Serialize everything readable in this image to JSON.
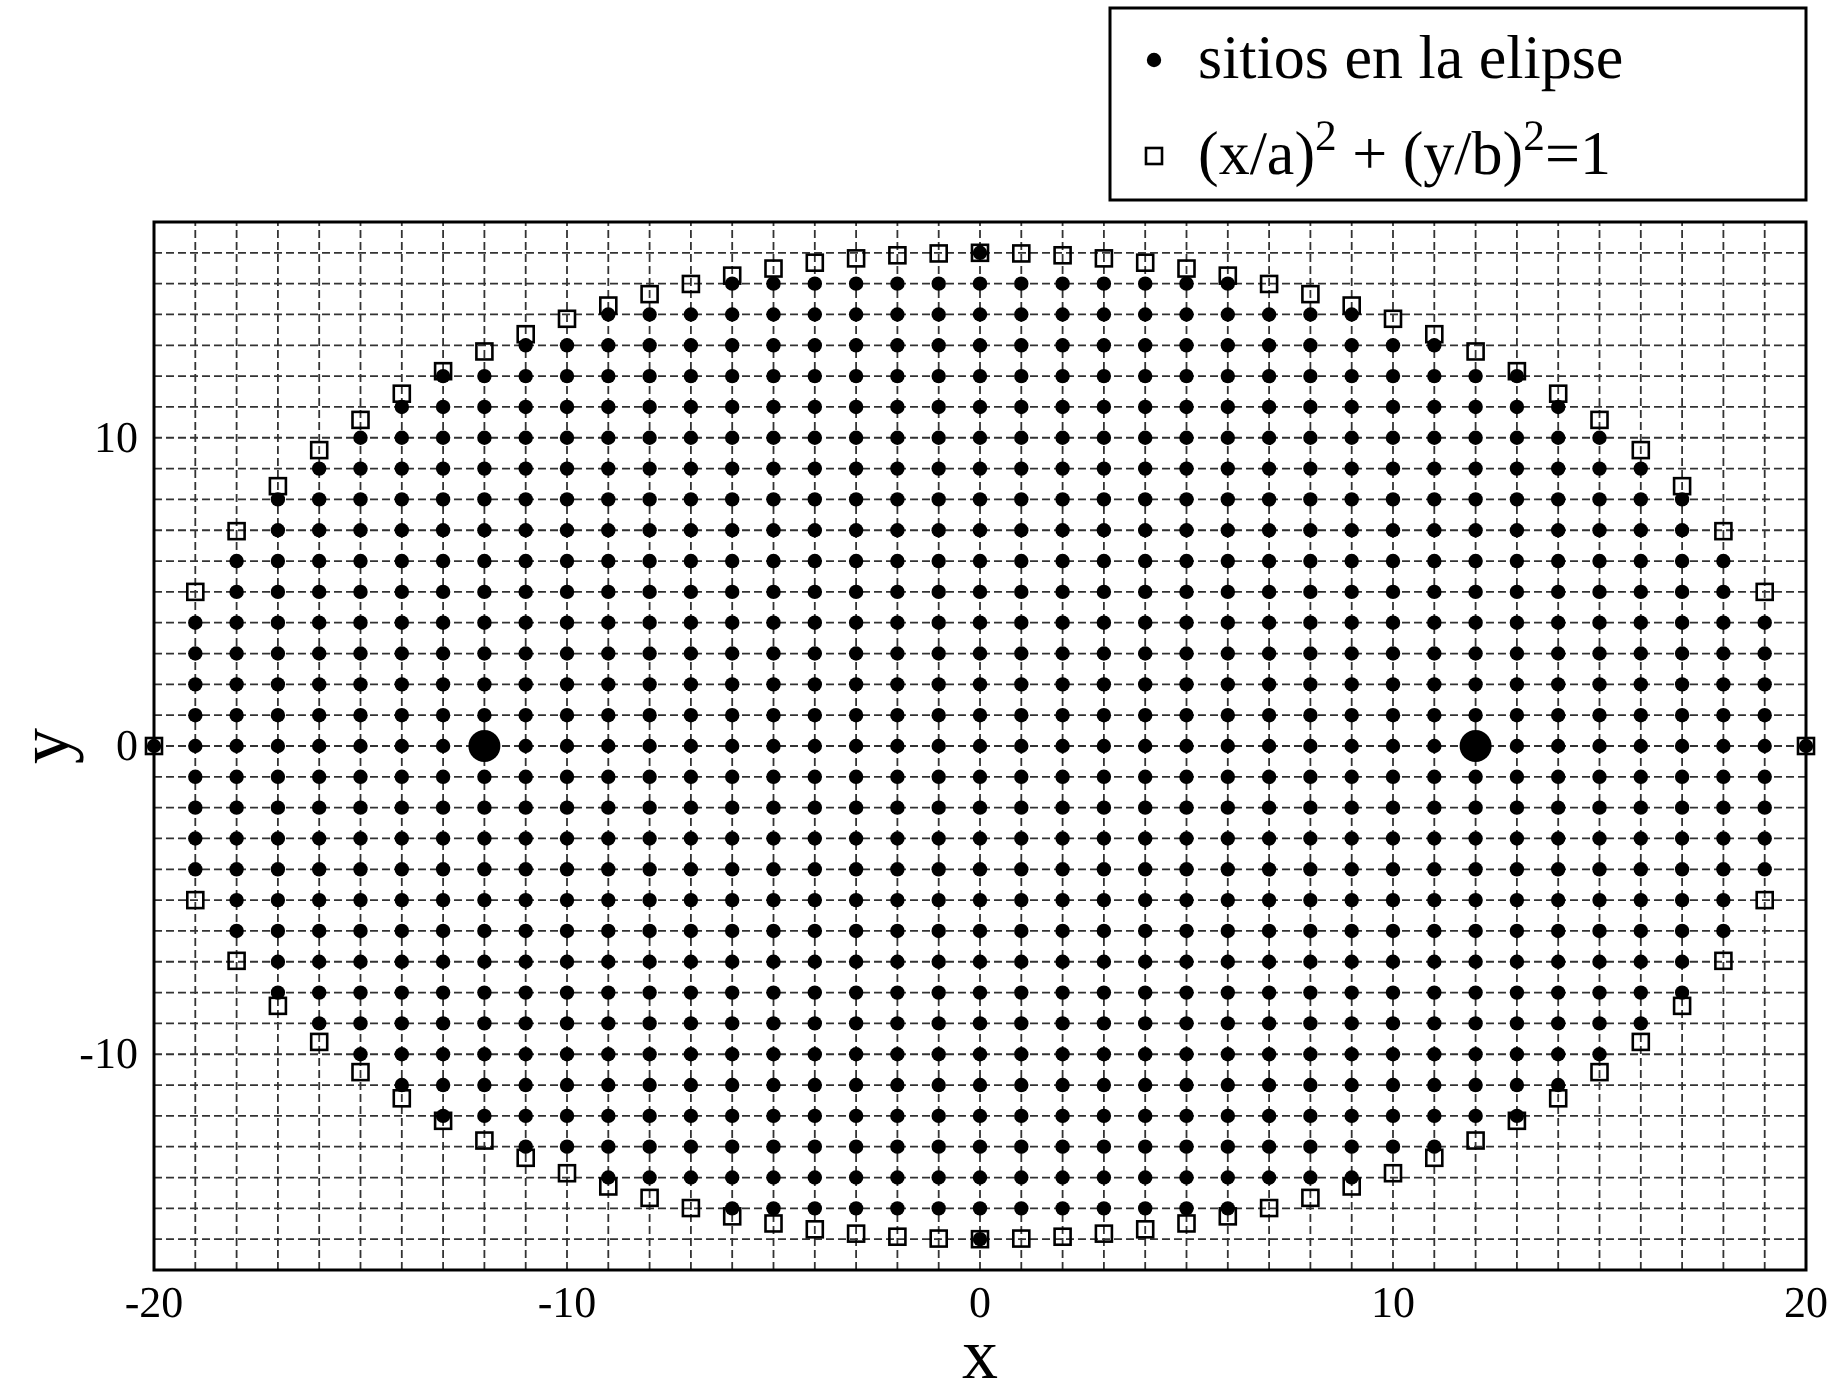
{
  "chart_data": {
    "type": "scatter",
    "xlabel": "x",
    "ylabel": "y",
    "xlim": [
      -20,
      20
    ],
    "ylim": [
      -17,
      17
    ],
    "xticks": [
      -20,
      {
        "value": -19,
        "label": null
      },
      {
        "value": -18,
        "label": null
      },
      {
        "value": -17,
        "label": null
      },
      {
        "value": -16,
        "label": null
      },
      {
        "value": -15,
        "label": null
      },
      {
        "value": -14,
        "label": null
      },
      {
        "value": -13,
        "label": null
      },
      {
        "value": -12,
        "label": null
      },
      {
        "value": -11,
        "label": null
      },
      -10,
      {
        "value": -9,
        "label": null
      },
      {
        "value": -8,
        "label": null
      },
      {
        "value": -7,
        "label": null
      },
      {
        "value": -6,
        "label": null
      },
      {
        "value": -5,
        "label": null
      },
      {
        "value": -4,
        "label": null
      },
      {
        "value": -3,
        "label": null
      },
      {
        "value": -2,
        "label": null
      },
      {
        "value": -1,
        "label": null
      },
      0,
      {
        "value": 1,
        "label": null
      },
      {
        "value": 2,
        "label": null
      },
      {
        "value": 3,
        "label": null
      },
      {
        "value": 4,
        "label": null
      },
      {
        "value": 5,
        "label": null
      },
      {
        "value": 6,
        "label": null
      },
      {
        "value": 7,
        "label": null
      },
      {
        "value": 8,
        "label": null
      },
      {
        "value": 9,
        "label": null
      },
      10,
      {
        "value": 11,
        "label": null
      },
      {
        "value": 12,
        "label": null
      },
      {
        "value": 13,
        "label": null
      },
      {
        "value": 14,
        "label": null
      },
      {
        "value": 15,
        "label": null
      },
      {
        "value": 16,
        "label": null
      },
      {
        "value": 17,
        "label": null
      },
      {
        "value": 18,
        "label": null
      },
      {
        "value": 19,
        "label": null
      },
      20
    ],
    "yticks": [
      {
        "value": -16,
        "label": null
      },
      {
        "value": -15,
        "label": null
      },
      {
        "value": -14,
        "label": null
      },
      {
        "value": -13,
        "label": null
      },
      {
        "value": -12,
        "label": null
      },
      {
        "value": -11,
        "label": null
      },
      -10,
      {
        "value": -9,
        "label": null
      },
      {
        "value": -8,
        "label": null
      },
      {
        "value": -7,
        "label": null
      },
      {
        "value": -6,
        "label": null
      },
      {
        "value": -5,
        "label": null
      },
      {
        "value": -4,
        "label": null
      },
      {
        "value": -3,
        "label": null
      },
      {
        "value": -2,
        "label": null
      },
      {
        "value": -1,
        "label": null
      },
      0,
      {
        "value": 1,
        "label": null
      },
      {
        "value": 2,
        "label": null
      },
      {
        "value": 3,
        "label": null
      },
      {
        "value": 4,
        "label": null
      },
      {
        "value": 5,
        "label": null
      },
      {
        "value": 6,
        "label": null
      },
      {
        "value": 7,
        "label": null
      },
      {
        "value": 8,
        "label": null
      },
      {
        "value": 9,
        "label": null
      },
      10,
      {
        "value": 11,
        "label": null
      },
      {
        "value": 12,
        "label": null
      },
      {
        "value": 13,
        "label": null
      },
      {
        "value": 14,
        "label": null
      },
      {
        "value": 15,
        "label": null
      },
      {
        "value": 16,
        "label": null
      }
    ],
    "grid": true,
    "legend": "top right",
    "series": [
      {
        "name": "sitios en la elipse",
        "color": "#000000",
        "marker": "circle",
        "x": [
          0,
          -6,
          -5,
          -4,
          -3,
          -2,
          -1,
          0,
          1,
          2,
          3,
          4,
          5,
          6,
          -9,
          -8,
          -7,
          -6,
          -5,
          -4,
          -3,
          -2,
          -1,
          0,
          1,
          2,
          3,
          4,
          5,
          6,
          7,
          8,
          9,
          -11,
          -10,
          -9,
          -8,
          -7,
          -6,
          -5,
          -4,
          -3,
          -2,
          -1,
          0,
          1,
          2,
          3,
          4,
          5,
          6,
          7,
          8,
          9,
          10,
          11,
          -13,
          -12,
          -11,
          -10,
          -9,
          -8,
          -7,
          -6,
          -5,
          -4,
          -3,
          -2,
          -1,
          0,
          1,
          2,
          3,
          4,
          5,
          6,
          7,
          8,
          9,
          10,
          11,
          12,
          13,
          -14,
          -13,
          -12,
          -11,
          -10,
          -9,
          -8,
          -7,
          -6,
          -5,
          -4,
          -3,
          -2,
          -1,
          0,
          1,
          2,
          3,
          4,
          5,
          6,
          7,
          8,
          9,
          10,
          11,
          12,
          13,
          14,
          -15,
          -14,
          -13,
          -12,
          -11,
          -10,
          -9,
          -8,
          -7,
          -6,
          -5,
          -4,
          -3,
          -2,
          -1,
          0,
          1,
          2,
          3,
          4,
          5,
          6,
          7,
          8,
          9,
          10,
          11,
          12,
          13,
          14,
          15,
          -16,
          -15,
          -14,
          -13,
          -12,
          -11,
          -10,
          -9,
          -8,
          -7,
          -6,
          -5,
          -4,
          -3,
          -2,
          -1,
          0,
          1,
          2,
          3,
          4,
          5,
          6,
          7,
          8,
          9,
          10,
          11,
          12,
          13,
          14,
          15,
          16,
          -17,
          -16,
          -15,
          -14,
          -13,
          -12,
          -11,
          -10,
          -9,
          -8,
          -7,
          -6,
          -5,
          -4,
          -3,
          -2,
          -1,
          0,
          1,
          2,
          3,
          4,
          5,
          6,
          7,
          8,
          9,
          10,
          11,
          12,
          13,
          14,
          15,
          16,
          17,
          -17,
          -16,
          -15,
          -14,
          -13,
          -12,
          -11,
          -10,
          -9,
          -8,
          -7,
          -6,
          -5,
          -4,
          -3,
          -2,
          -1,
          0,
          1,
          2,
          3,
          4,
          5,
          6,
          7,
          8,
          9,
          10,
          11,
          12,
          13,
          14,
          15,
          16,
          17,
          -18,
          -17,
          -16,
          -15,
          -14,
          -13,
          -12,
          -11,
          -10,
          -9,
          -8,
          -7,
          -6,
          -5,
          -4,
          -3,
          -2,
          -1,
          0,
          1,
          2,
          3,
          4,
          5,
          6,
          7,
          8,
          9,
          10,
          11,
          12,
          13,
          14,
          15,
          16,
          17,
          18,
          -18,
          -17,
          -16,
          -15,
          -14,
          -13,
          -12,
          -11,
          -10,
          -9,
          -8,
          -7,
          -6,
          -5,
          -4,
          -3,
          -2,
          -1,
          0,
          1,
          2,
          3,
          4,
          5,
          6,
          7,
          8,
          9,
          10,
          11,
          12,
          13,
          14,
          15,
          16,
          17,
          18,
          -19,
          -18,
          -17,
          -16,
          -15,
          -14,
          -13,
          -12,
          -11,
          -10,
          -9,
          -8,
          -7,
          -6,
          -5,
          -4,
          -3,
          -2,
          -1,
          0,
          1,
          2,
          3,
          4,
          5,
          6,
          7,
          8,
          9,
          10,
          11,
          12,
          13,
          14,
          15,
          16,
          17,
          18,
          19,
          -19,
          -18,
          -17,
          -16,
          -15,
          -14,
          -13,
          -12,
          -11,
          -10,
          -9,
          -8,
          -7,
          -6,
          -5,
          -4,
          -3,
          -2,
          -1,
          0,
          1,
          2,
          3,
          4,
          5,
          6,
          7,
          8,
          9,
          10,
          11,
          12,
          13,
          14,
          15,
          16,
          17,
          18,
          19,
          -19,
          -18,
          -17,
          -16,
          -15,
          -14,
          -13,
          -12,
          -11,
          -10,
          -9,
          -8,
          -7,
          -6,
          -5,
          -4,
          -3,
          -2,
          -1,
          0,
          1,
          2,
          3,
          4,
          5,
          6,
          7,
          8,
          9,
          10,
          11,
          12,
          13,
          14,
          15,
          16,
          17,
          18,
          19,
          -19,
          -18,
          -17,
          -16,
          -15,
          -14,
          -13,
          -12,
          -11,
          -10,
          -9,
          -8,
          -7,
          -6,
          -5,
          -4,
          -3,
          -2,
          -1,
          0,
          1,
          2,
          3,
          4,
          5,
          6,
          7,
          8,
          9,
          10,
          11,
          12,
          13,
          14,
          15,
          16,
          17,
          18,
          19,
          -20,
          -19,
          -18,
          -17,
          -16,
          -15,
          -14,
          -13,
          -11,
          -10,
          -9,
          -8,
          -7,
          -6,
          -5,
          -4,
          -3,
          -2,
          -1,
          0,
          1,
          2,
          3,
          4,
          5,
          6,
          7,
          8,
          9,
          10,
          11,
          13,
          14,
          15,
          16,
          17,
          18,
          19,
          20,
          -19,
          -18,
          -17,
          -16,
          -15,
          -14,
          -13,
          -12,
          -11,
          -10,
          -9,
          -8,
          -7,
          -6,
          -5,
          -4,
          -3,
          -2,
          -1,
          0,
          1,
          2,
          3,
          4,
          5,
          6,
          7,
          8,
          9,
          10,
          11,
          12,
          13,
          14,
          15,
          16,
          17,
          18,
          19,
          -19,
          -18,
          -17,
          -16,
          -15,
          -14,
          -13,
          -12,
          -11,
          -10,
          -9,
          -8,
          -7,
          -6,
          -5,
          -4,
          -3,
          -2,
          -1,
          0,
          1,
          2,
          3,
          4,
          5,
          6,
          7,
          8,
          9,
          10,
          11,
          12,
          13,
          14,
          15,
          16,
          17,
          18,
          19,
          -19,
          -18,
          -17,
          -16,
          -15,
          -14,
          -13,
          -12,
          -11,
          -10,
          -9,
          -8,
          -7,
          -6,
          -5,
          -4,
          -3,
          -2,
          -1,
          0,
          1,
          2,
          3,
          4,
          5,
          6,
          7,
          8,
          9,
          10,
          11,
          12,
          13,
          14,
          15,
          16,
          17,
          18,
          19,
          -19,
          -18,
          -17,
          -16,
          -15,
          -14,
          -13,
          -12,
          -11,
          -10,
          -9,
          -8,
          -7,
          -6,
          -5,
          -4,
          -3,
          -2,
          -1,
          0,
          1,
          2,
          3,
          4,
          5,
          6,
          7,
          8,
          9,
          10,
          11,
          12,
          13,
          14,
          15,
          16,
          17,
          18,
          19,
          -18,
          -17,
          -16,
          -15,
          -14,
          -13,
          -12,
          -11,
          -10,
          -9,
          -8,
          -7,
          -6,
          -5,
          -4,
          -3,
          -2,
          -1,
          0,
          1,
          2,
          3,
          4,
          5,
          6,
          7,
          8,
          9,
          10,
          11,
          12,
          13,
          14,
          15,
          16,
          17,
          18,
          -18,
          -17,
          -16,
          -15,
          -14,
          -13,
          -12,
          -11,
          -10,
          -9,
          -8,
          -7,
          -6,
          -5,
          -4,
          -3,
          -2,
          -1,
          0,
          1,
          2,
          3,
          4,
          5,
          6,
          7,
          8,
          9,
          10,
          11,
          12,
          13,
          14,
          15,
          16,
          17,
          18,
          -17,
          -16,
          -15,
          -14,
          -13,
          -12,
          -11,
          -10,
          -9,
          -8,
          -7,
          -6,
          -5,
          -4,
          -3,
          -2,
          -1,
          0,
          1,
          2,
          3,
          4,
          5,
          6,
          7,
          8,
          9,
          10,
          11,
          12,
          13,
          14,
          15,
          16,
          17,
          -17,
          -16,
          -15,
          -14,
          -13,
          -12,
          -11,
          -10,
          -9,
          -8,
          -7,
          -6,
          -5,
          -4,
          -3,
          -2,
          -1,
          0,
          1,
          2,
          3,
          4,
          5,
          6,
          7,
          8,
          9,
          10,
          11,
          12,
          13,
          14,
          15,
          16,
          17,
          -16,
          -15,
          -14,
          -13,
          -12,
          -11,
          -10,
          -9,
          -8,
          -7,
          -6,
          -5,
          -4,
          -3,
          -2,
          -1,
          0,
          1,
          2,
          3,
          4,
          5,
          6,
          7,
          8,
          9,
          10,
          11,
          12,
          13,
          14,
          15,
          16,
          -15,
          -14,
          -13,
          -12,
          -11,
          -10,
          -9,
          -8,
          -7,
          -6,
          -5,
          -4,
          -3,
          -2,
          -1,
          0,
          1,
          2,
          3,
          4,
          5,
          6,
          7,
          8,
          9,
          10,
          11,
          12,
          13,
          14,
          15,
          -14,
          -13,
          -12,
          -11,
          -10,
          -9,
          -8,
          -7,
          -6,
          -5,
          -4,
          -3,
          -2,
          -1,
          0,
          1,
          2,
          3,
          4,
          5,
          6,
          7,
          8,
          9,
          10,
          11,
          12,
          13,
          14,
          -13,
          -12,
          -11,
          -10,
          -9,
          -8,
          -7,
          -6,
          -5,
          -4,
          -3,
          -2,
          -1,
          0,
          1,
          2,
          3,
          4,
          5,
          6,
          7,
          8,
          9,
          10,
          11,
          12,
          13,
          -11,
          -10,
          -9,
          -8,
          -7,
          -6,
          -5,
          -4,
          -3,
          -2,
          -1,
          0,
          1,
          2,
          3,
          4,
          5,
          6,
          7,
          8,
          9,
          10,
          11,
          -9,
          -8,
          -7,
          -6,
          -5,
          -4,
          -3,
          -2,
          -1,
          0,
          1,
          2,
          3,
          4,
          5,
          6,
          7,
          8,
          9,
          -6,
          -5,
          -4,
          -3,
          -2,
          -1,
          0,
          1,
          2,
          3,
          4,
          5,
          6,
          0
        ],
        "values": [
          16,
          15,
          15,
          15,
          15,
          15,
          15,
          15,
          15,
          15,
          15,
          15,
          15,
          15,
          14,
          14,
          14,
          14,
          14,
          14,
          14,
          14,
          14,
          14,
          14,
          14,
          14,
          14,
          14,
          14,
          14,
          14,
          14,
          13,
          13,
          13,
          13,
          13,
          13,
          13,
          13,
          13,
          13,
          13,
          13,
          13,
          13,
          13,
          13,
          13,
          13,
          13,
          13,
          13,
          13,
          13,
          12,
          12,
          12,
          12,
          12,
          12,
          12,
          12,
          12,
          12,
          12,
          12,
          12,
          12,
          12,
          12,
          12,
          12,
          12,
          12,
          12,
          12,
          12,
          12,
          12,
          12,
          12,
          11,
          11,
          11,
          11,
          11,
          11,
          11,
          11,
          11,
          11,
          11,
          11,
          11,
          11,
          11,
          11,
          11,
          11,
          11,
          11,
          11,
          11,
          11,
          11,
          11,
          11,
          11,
          11,
          11,
          10,
          10,
          10,
          10,
          10,
          10,
          10,
          10,
          10,
          10,
          10,
          10,
          10,
          10,
          10,
          10,
          10,
          10,
          10,
          10,
          10,
          10,
          10,
          10,
          10,
          10,
          10,
          10,
          10,
          10,
          10,
          9,
          9,
          9,
          9,
          9,
          9,
          9,
          9,
          9,
          9,
          9,
          9,
          9,
          9,
          9,
          9,
          9,
          9,
          9,
          9,
          9,
          9,
          9,
          9,
          9,
          9,
          9,
          9,
          9,
          9,
          9,
          9,
          9,
          8,
          8,
          8,
          8,
          8,
          8,
          8,
          8,
          8,
          8,
          8,
          8,
          8,
          8,
          8,
          8,
          8,
          8,
          8,
          8,
          8,
          8,
          8,
          8,
          8,
          8,
          8,
          8,
          8,
          8,
          8,
          8,
          8,
          8,
          8,
          7,
          7,
          7,
          7,
          7,
          7,
          7,
          7,
          7,
          7,
          7,
          7,
          7,
          7,
          7,
          7,
          7,
          7,
          7,
          7,
          7,
          7,
          7,
          7,
          7,
          7,
          7,
          7,
          7,
          7,
          7,
          7,
          7,
          7,
          7,
          6,
          6,
          6,
          6,
          6,
          6,
          6,
          6,
          6,
          6,
          6,
          6,
          6,
          6,
          6,
          6,
          6,
          6,
          6,
          6,
          6,
          6,
          6,
          6,
          6,
          6,
          6,
          6,
          6,
          6,
          6,
          6,
          6,
          6,
          6,
          6,
          6,
          5,
          5,
          5,
          5,
          5,
          5,
          5,
          5,
          5,
          5,
          5,
          5,
          5,
          5,
          5,
          5,
          5,
          5,
          5,
          5,
          5,
          5,
          5,
          5,
          5,
          5,
          5,
          5,
          5,
          5,
          5,
          5,
          5,
          5,
          5,
          5,
          5,
          4,
          4,
          4,
          4,
          4,
          4,
          4,
          4,
          4,
          4,
          4,
          4,
          4,
          4,
          4,
          4,
          4,
          4,
          4,
          4,
          4,
          4,
          4,
          4,
          4,
          4,
          4,
          4,
          4,
          4,
          4,
          4,
          4,
          4,
          4,
          4,
          4,
          4,
          4,
          3,
          3,
          3,
          3,
          3,
          3,
          3,
          3,
          3,
          3,
          3,
          3,
          3,
          3,
          3,
          3,
          3,
          3,
          3,
          3,
          3,
          3,
          3,
          3,
          3,
          3,
          3,
          3,
          3,
          3,
          3,
          3,
          3,
          3,
          3,
          3,
          3,
          3,
          3,
          2,
          2,
          2,
          2,
          2,
          2,
          2,
          2,
          2,
          2,
          2,
          2,
          2,
          2,
          2,
          2,
          2,
          2,
          2,
          2,
          2,
          2,
          2,
          2,
          2,
          2,
          2,
          2,
          2,
          2,
          2,
          2,
          2,
          2,
          2,
          2,
          2,
          2,
          2,
          1,
          1,
          1,
          1,
          1,
          1,
          1,
          1,
          1,
          1,
          1,
          1,
          1,
          1,
          1,
          1,
          1,
          1,
          1,
          1,
          1,
          1,
          1,
          1,
          1,
          1,
          1,
          1,
          1,
          1,
          1,
          1,
          1,
          1,
          1,
          1,
          1,
          1,
          1,
          0,
          0,
          0,
          0,
          0,
          0,
          0,
          0,
          0,
          0,
          0,
          0,
          0,
          0,
          0,
          0,
          0,
          0,
          0,
          0,
          0,
          0,
          0,
          0,
          0,
          0,
          0,
          0,
          0,
          0,
          0,
          0,
          0,
          0,
          0,
          0,
          0,
          0,
          0,
          -1,
          -1,
          -1,
          -1,
          -1,
          -1,
          -1,
          -1,
          -1,
          -1,
          -1,
          -1,
          -1,
          -1,
          -1,
          -1,
          -1,
          -1,
          -1,
          -1,
          -1,
          -1,
          -1,
          -1,
          -1,
          -1,
          -1,
          -1,
          -1,
          -1,
          -1,
          -1,
          -1,
          -1,
          -1,
          -1,
          -1,
          -1,
          -1,
          -2,
          -2,
          -2,
          -2,
          -2,
          -2,
          -2,
          -2,
          -2,
          -2,
          -2,
          -2,
          -2,
          -2,
          -2,
          -2,
          -2,
          -2,
          -2,
          -2,
          -2,
          -2,
          -2,
          -2,
          -2,
          -2,
          -2,
          -2,
          -2,
          -2,
          -2,
          -2,
          -2,
          -2,
          -2,
          -2,
          -2,
          -2,
          -2,
          -3,
          -3,
          -3,
          -3,
          -3,
          -3,
          -3,
          -3,
          -3,
          -3,
          -3,
          -3,
          -3,
          -3,
          -3,
          -3,
          -3,
          -3,
          -3,
          -3,
          -3,
          -3,
          -3,
          -3,
          -3,
          -3,
          -3,
          -3,
          -3,
          -3,
          -3,
          -3,
          -3,
          -3,
          -3,
          -3,
          -3,
          -3,
          -3,
          -4,
          -4,
          -4,
          -4,
          -4,
          -4,
          -4,
          -4,
          -4,
          -4,
          -4,
          -4,
          -4,
          -4,
          -4,
          -4,
          -4,
          -4,
          -4,
          -4,
          -4,
          -4,
          -4,
          -4,
          -4,
          -4,
          -4,
          -4,
          -4,
          -4,
          -4,
          -4,
          -4,
          -4,
          -4,
          -4,
          -4,
          -4,
          -4,
          -5,
          -5,
          -5,
          -5,
          -5,
          -5,
          -5,
          -5,
          -5,
          -5,
          -5,
          -5,
          -5,
          -5,
          -5,
          -5,
          -5,
          -5,
          -5,
          -5,
          -5,
          -5,
          -5,
          -5,
          -5,
          -5,
          -5,
          -5,
          -5,
          -5,
          -5,
          -5,
          -5,
          -5,
          -5,
          -5,
          -5,
          -6,
          -6,
          -6,
          -6,
          -6,
          -6,
          -6,
          -6,
          -6,
          -6,
          -6,
          -6,
          -6,
          -6,
          -6,
          -6,
          -6,
          -6,
          -6,
          -6,
          -6,
          -6,
          -6,
          -6,
          -6,
          -6,
          -6,
          -6,
          -6,
          -6,
          -6,
          -6,
          -6,
          -6,
          -6,
          -6,
          -6,
          -7,
          -7,
          -7,
          -7,
          -7,
          -7,
          -7,
          -7,
          -7,
          -7,
          -7,
          -7,
          -7,
          -7,
          -7,
          -7,
          -7,
          -7,
          -7,
          -7,
          -7,
          -7,
          -7,
          -7,
          -7,
          -7,
          -7,
          -7,
          -7,
          -7,
          -7,
          -7,
          -7,
          -7,
          -7,
          -8,
          -8,
          -8,
          -8,
          -8,
          -8,
          -8,
          -8,
          -8,
          -8,
          -8,
          -8,
          -8,
          -8,
          -8,
          -8,
          -8,
          -8,
          -8,
          -8,
          -8,
          -8,
          -8,
          -8,
          -8,
          -8,
          -8,
          -8,
          -8,
          -8,
          -8,
          -8,
          -8,
          -8,
          -8,
          -9,
          -9,
          -9,
          -9,
          -9,
          -9,
          -9,
          -9,
          -9,
          -9,
          -9,
          -9,
          -9,
          -9,
          -9,
          -9,
          -9,
          -9,
          -9,
          -9,
          -9,
          -9,
          -9,
          -9,
          -9,
          -9,
          -9,
          -9,
          -9,
          -9,
          -9,
          -9,
          -9,
          -10,
          -10,
          -10,
          -10,
          -10,
          -10,
          -10,
          -10,
          -10,
          -10,
          -10,
          -10,
          -10,
          -10,
          -10,
          -10,
          -10,
          -10,
          -10,
          -10,
          -10,
          -10,
          -10,
          -10,
          -10,
          -10,
          -10,
          -10,
          -10,
          -10,
          -10,
          -11,
          -11,
          -11,
          -11,
          -11,
          -11,
          -11,
          -11,
          -11,
          -11,
          -11,
          -11,
          -11,
          -11,
          -11,
          -11,
          -11,
          -11,
          -11,
          -11,
          -11,
          -11,
          -11,
          -11,
          -11,
          -11,
          -11,
          -11,
          -11,
          -12,
          -12,
          -12,
          -12,
          -12,
          -12,
          -12,
          -12,
          -12,
          -12,
          -12,
          -12,
          -12,
          -12,
          -12,
          -12,
          -12,
          -12,
          -12,
          -12,
          -12,
          -12,
          -12,
          -12,
          -12,
          -12,
          -12,
          -13,
          -13,
          -13,
          -13,
          -13,
          -13,
          -13,
          -13,
          -13,
          -13,
          -13,
          -13,
          -13,
          -13,
          -13,
          -13,
          -13,
          -13,
          -13,
          -13,
          -13,
          -13,
          -13,
          -14,
          -14,
          -14,
          -14,
          -14,
          -14,
          -14,
          -14,
          -14,
          -14,
          -14,
          -14,
          -14,
          -14,
          -14,
          -14,
          -14,
          -14,
          -14,
          -15,
          -15,
          -15,
          -15,
          -15,
          -15,
          -15,
          -15,
          -15,
          -15,
          -15,
          -15,
          -15,
          -16
        ]
      },
      {
        "name": "(x/a)$^{2}$ + (y/b)$^{2}$=1",
        "color": "#000000",
        "marker": "square",
        "x": [
          -20,
          -19,
          -18,
          -17,
          -16,
          -15,
          -14,
          -13,
          -12,
          -11,
          -10,
          -9,
          -8,
          -7,
          -6,
          -5,
          -4,
          -3,
          -2,
          -1,
          0,
          1,
          2,
          3,
          4,
          5,
          6,
          7,
          8,
          9,
          10,
          11,
          12,
          13,
          14,
          15,
          16,
          17,
          18,
          19,
          20,
          -19,
          -18,
          -17,
          -16,
          -15,
          -14,
          -13,
          -12,
          -11,
          -10,
          -9,
          -8,
          -7,
          -6,
          -5,
          -4,
          -3,
          -2,
          -1,
          0,
          1,
          2,
          3,
          4,
          5,
          6,
          7,
          8,
          9,
          10,
          11,
          12,
          13,
          14,
          15,
          16,
          17,
          18,
          19
        ],
        "values": [
          0,
          5.0,
          6.97,
          8.43,
          9.6,
          10.58,
          11.43,
          12.16,
          12.8,
          13.36,
          13.86,
          14.29,
          14.66,
          14.99,
          15.26,
          15.49,
          15.68,
          15.82,
          15.92,
          15.98,
          16,
          15.98,
          15.92,
          15.82,
          15.68,
          15.49,
          15.26,
          14.99,
          14.66,
          14.29,
          13.86,
          13.36,
          12.8,
          12.16,
          11.43,
          10.58,
          9.6,
          8.43,
          6.97,
          5.0,
          0,
          -5.0,
          -6.97,
          -8.43,
          -9.6,
          -10.58,
          -11.43,
          -12.16,
          -12.8,
          -13.36,
          -13.86,
          -14.29,
          -14.66,
          -14.99,
          -15.26,
          -15.49,
          -15.68,
          -15.82,
          -15.92,
          -15.98,
          -16,
          -15.98,
          -15.92,
          -15.82,
          -15.68,
          -15.49,
          -15.26,
          -14.99,
          -14.66,
          -14.29,
          -13.86,
          -13.36,
          -12.8,
          -12.16,
          -11.43,
          -10.58,
          -9.6,
          -8.43,
          -6.97,
          -5.0
        ]
      },
      {
        "type": "bubble",
        "color": "#000000",
        "marker": "circle",
        "x": [
          -12,
          12
        ],
        "values": [
          0,
          0
        ],
        "sizes": [
          1,
          1
        ]
      }
    ]
  }
}
